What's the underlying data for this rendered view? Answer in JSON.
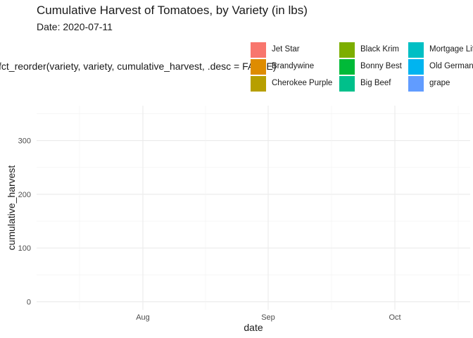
{
  "chart_data": {
    "type": "area",
    "title": "Cumulative Harvest of Tomatoes, by Variety (in lbs)",
    "subtitle": "Date: 2020-07-11",
    "xlabel": "date",
    "ylabel": "cumulative_harvest",
    "x_ticks": [
      "Aug",
      "Sep",
      "Oct"
    ],
    "y_ticks": [
      0,
      100,
      200,
      300
    ],
    "ylim": [
      -15,
      365
    ],
    "grid": true,
    "legend": {
      "title": "fct_reorder(variety, variety, cumulative_harvest, .desc = FALSE)",
      "placement": "top-right",
      "entries": [
        {
          "name": "Jet Star",
          "color": "#F8766D"
        },
        {
          "name": "Brandywine",
          "color": "#DE8C00"
        },
        {
          "name": "Cherokee Purple",
          "color": "#B79F00"
        },
        {
          "name": "Black Krim",
          "color": "#7CAE00"
        },
        {
          "name": "Bonny Best",
          "color": "#00BA38"
        },
        {
          "name": "Big Beef",
          "color": "#00C08B"
        },
        {
          "name": "Mortgage Lifter",
          "color": "#00BFC4"
        },
        {
          "name": "Old German",
          "color": "#00B4F0"
        },
        {
          "name": "grape",
          "color": "#619CFF"
        }
      ]
    },
    "series": []
  }
}
